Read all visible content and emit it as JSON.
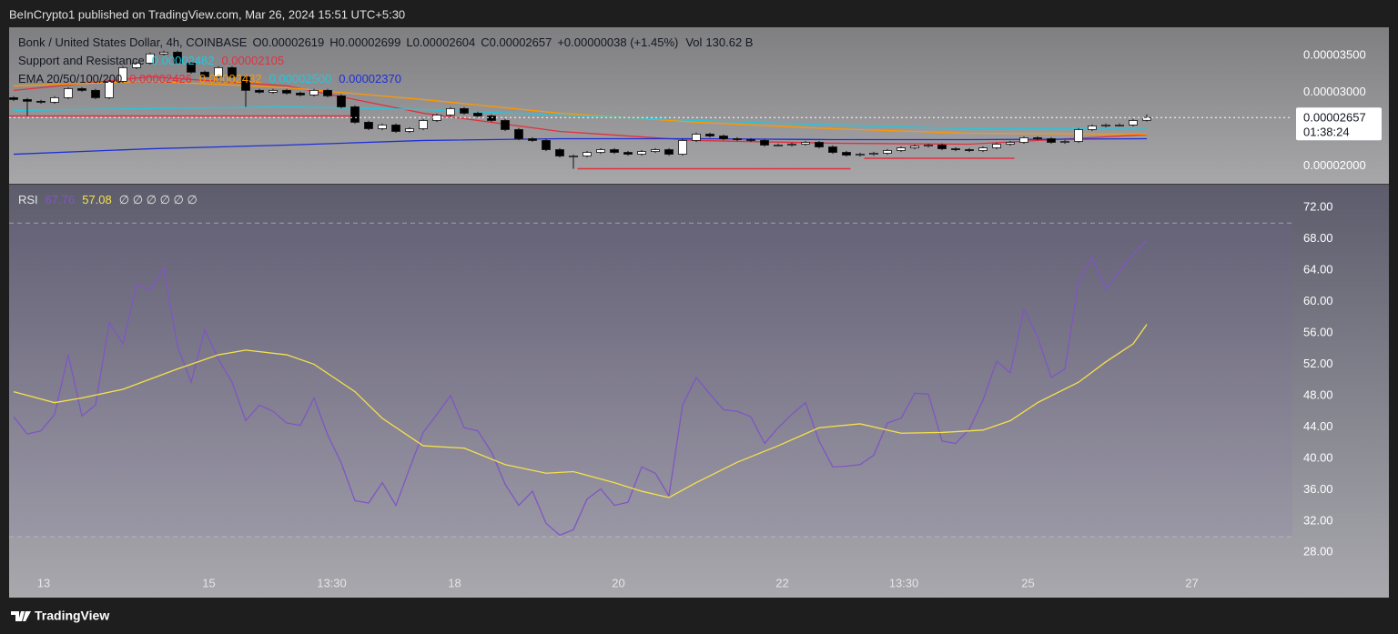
{
  "header": {
    "text": "BeInCrypto1 published on TradingView.com, Mar 26, 2024 15:51 UTC+5:30"
  },
  "footer": {
    "logo": "TradingView"
  },
  "chart_data": [
    {
      "type": "candlestick",
      "symbol": "Bonk / United States Dollar, 4h, COINBASE",
      "ohlc_labels": [
        {
          "key": "O",
          "text": "0.00002619"
        },
        {
          "key": "H",
          "text": "0.00002699"
        },
        {
          "key": "L",
          "text": "0.00002604"
        },
        {
          "key": "C",
          "text": "0.00002657"
        }
      ],
      "change": "+0.00000038 (+1.45%)",
      "volume_key": "Vol",
      "volume": "130.62 B",
      "indicators": [
        {
          "title": "Support and Resistance",
          "labels": [
            {
              "text": "0.00002482",
              "color": "#26c6da"
            },
            {
              "text": "0.00002105",
              "color": "#e0313f"
            }
          ]
        },
        {
          "title": "EMA 20/50/100/200",
          "labels": [
            {
              "text": "0.00002426",
              "color": "#e0313f"
            },
            {
              "text": "0.00002432",
              "color": "#ff9800"
            },
            {
              "text": "0.00002500",
              "color": "#26c6da"
            },
            {
              "text": "0.00002370",
              "color": "#1e2fd6"
            }
          ]
        }
      ],
      "up_color": "#ffffff",
      "down_color": "#000000",
      "x": [
        0,
        1,
        2,
        3,
        4,
        5,
        6,
        7,
        8,
        9,
        10,
        11,
        12,
        13,
        14,
        15,
        16,
        17,
        18,
        19,
        20,
        21,
        22,
        23,
        24,
        25,
        26,
        27,
        28,
        29,
        30,
        31,
        32,
        33,
        34,
        35,
        36,
        37,
        38,
        39,
        40,
        41,
        42,
        43,
        44,
        45,
        46,
        47,
        48,
        49,
        50,
        51,
        52,
        53,
        54,
        55,
        56,
        57,
        58,
        59,
        60,
        61,
        62,
        63,
        64,
        65,
        66,
        67,
        68,
        69,
        70,
        71,
        72,
        73,
        74,
        75,
        76,
        77,
        78,
        79,
        80,
        81,
        82,
        83
      ],
      "open": [
        2.926e-05,
        2.901e-05,
        2.877e-05,
        2.864e-05,
        2.926e-05,
        3.049e-05,
        3.025e-05,
        2.926e-05,
        3.148e-05,
        3.333e-05,
        3.395e-05,
        3.519e-05,
        3.543e-05,
        3.395e-05,
        3.272e-05,
        3.21e-05,
        3.333e-05,
        3.21e-05,
        3.025e-05,
        3e-05,
        3.025e-05,
        2.988e-05,
        2.963e-05,
        3.025e-05,
        2.951e-05,
        2.802e-05,
        2.593e-05,
        2.506e-05,
        2.556e-05,
        2.469e-05,
        2.506e-05,
        2.617e-05,
        2.691e-05,
        2.778e-05,
        2.716e-05,
        2.679e-05,
        2.617e-05,
        2.494e-05,
        2.37e-05,
        2.346e-05,
        2.222e-05,
        2.136e-05,
        2.136e-05,
        2.185e-05,
        2.222e-05,
        2.185e-05,
        2.16e-05,
        2.197e-05,
        2.222e-05,
        2.16e-05,
        2.346e-05,
        2.432e-05,
        2.407e-05,
        2.37e-05,
        2.358e-05,
        2.346e-05,
        2.284e-05,
        2.284e-05,
        2.296e-05,
        2.321e-05,
        2.259e-05,
        2.185e-05,
        2.148e-05,
        2.16e-05,
        2.173e-05,
        2.21e-05,
        2.247e-05,
        2.271e-05,
        2.284e-05,
        2.234e-05,
        2.222e-05,
        2.21e-05,
        2.247e-05,
        2.296e-05,
        2.321e-05,
        2.383e-05,
        2.37e-05,
        2.321e-05,
        2.333e-05,
        2.494e-05,
        2.543e-05,
        2.556e-05,
        2.556e-05,
        2.619e-05
      ],
      "high": [
        2.946e-05,
        2.921e-05,
        2.897e-05,
        2.946e-05,
        3.069e-05,
        3.069e-05,
        3.045e-05,
        3.168e-05,
        3.353e-05,
        3.415e-05,
        3.539e-05,
        3.563e-05,
        3.563e-05,
        3.415e-05,
        3.292e-05,
        3.353e-05,
        3.353e-05,
        3.23e-05,
        3.045e-05,
        3.045e-05,
        3.045e-05,
        3.008e-05,
        3.045e-05,
        3.045e-05,
        2.971e-05,
        2.822e-05,
        2.613e-05,
        2.576e-05,
        2.576e-05,
        2.526e-05,
        2.637e-05,
        2.711e-05,
        2.798e-05,
        2.798e-05,
        2.736e-05,
        2.699e-05,
        2.637e-05,
        2.514e-05,
        2.39e-05,
        2.366e-05,
        2.242e-05,
        2.156e-05,
        2.205e-05,
        2.242e-05,
        2.242e-05,
        2.205e-05,
        2.217e-05,
        2.242e-05,
        2.242e-05,
        2.366e-05,
        2.452e-05,
        2.452e-05,
        2.427e-05,
        2.39e-05,
        2.378e-05,
        2.366e-05,
        2.304e-05,
        2.316e-05,
        2.341e-05,
        2.341e-05,
        2.279e-05,
        2.205e-05,
        2.18e-05,
        2.193e-05,
        2.23e-05,
        2.267e-05,
        2.291e-05,
        2.304e-05,
        2.304e-05,
        2.254e-05,
        2.242e-05,
        2.267e-05,
        2.316e-05,
        2.341e-05,
        2.403e-05,
        2.403e-05,
        2.39e-05,
        2.353e-05,
        2.514e-05,
        2.563e-05,
        2.576e-05,
        2.576e-05,
        2.637e-05,
        2.699e-05
      ],
      "low": [
        2.881e-05,
        2.679e-05,
        2.844e-05,
        2.844e-05,
        2.906e-05,
        3.005e-05,
        2.906e-05,
        2.906e-05,
        3.128e-05,
        3.313e-05,
        3.375e-05,
        3.499e-05,
        3.375e-05,
        3.252e-05,
        3.19e-05,
        3.19e-05,
        3.19e-05,
        2.802e-05,
        2.98e-05,
        2.98e-05,
        2.968e-05,
        2.943e-05,
        2.943e-05,
        2.931e-05,
        2.782e-05,
        2.573e-05,
        2.486e-05,
        2.486e-05,
        2.449e-05,
        2.449e-05,
        2.486e-05,
        2.597e-05,
        2.671e-05,
        2.696e-05,
        2.659e-05,
        2.597e-05,
        2.474e-05,
        2.35e-05,
        2.326e-05,
        2.202e-05,
        2.116e-05,
        1.963e-05,
        2.116e-05,
        2.165e-05,
        2.165e-05,
        2.14e-05,
        2.14e-05,
        2.177e-05,
        2.14e-05,
        2.14e-05,
        2.326e-05,
        2.387e-05,
        2.35e-05,
        2.338e-05,
        2.326e-05,
        2.264e-05,
        2.264e-05,
        2.264e-05,
        2.276e-05,
        2.239e-05,
        2.165e-05,
        2.128e-05,
        2.128e-05,
        2.14e-05,
        2.153e-05,
        2.19e-05,
        2.227e-05,
        2.251e-05,
        2.214e-05,
        2.202e-05,
        2.19e-05,
        2.19e-05,
        2.227e-05,
        2.276e-05,
        2.301e-05,
        2.35e-05,
        2.301e-05,
        2.301e-05,
        2.313e-05,
        2.474e-05,
        2.523e-05,
        2.536e-05,
        2.536e-05,
        2.604e-05
      ],
      "close": [
        2.901e-05,
        2.877e-05,
        2.864e-05,
        2.926e-05,
        3.049e-05,
        3.025e-05,
        2.926e-05,
        3.148e-05,
        3.333e-05,
        3.395e-05,
        3.519e-05,
        3.543e-05,
        3.395e-05,
        3.272e-05,
        3.21e-05,
        3.333e-05,
        3.21e-05,
        3.025e-05,
        3e-05,
        3.025e-05,
        2.988e-05,
        2.963e-05,
        3.025e-05,
        2.951e-05,
        2.802e-05,
        2.593e-05,
        2.506e-05,
        2.556e-05,
        2.469e-05,
        2.506e-05,
        2.617e-05,
        2.691e-05,
        2.778e-05,
        2.716e-05,
        2.679e-05,
        2.617e-05,
        2.494e-05,
        2.37e-05,
        2.346e-05,
        2.222e-05,
        2.136e-05,
        2.136e-05,
        2.185e-05,
        2.222e-05,
        2.185e-05,
        2.16e-05,
        2.197e-05,
        2.222e-05,
        2.16e-05,
        2.346e-05,
        2.432e-05,
        2.407e-05,
        2.37e-05,
        2.358e-05,
        2.346e-05,
        2.284e-05,
        2.284e-05,
        2.296e-05,
        2.321e-05,
        2.259e-05,
        2.185e-05,
        2.148e-05,
        2.16e-05,
        2.173e-05,
        2.21e-05,
        2.247e-05,
        2.271e-05,
        2.284e-05,
        2.234e-05,
        2.222e-05,
        2.21e-05,
        2.247e-05,
        2.296e-05,
        2.321e-05,
        2.383e-05,
        2.37e-05,
        2.321e-05,
        2.333e-05,
        2.494e-05,
        2.543e-05,
        2.556e-05,
        2.556e-05,
        2.617e-05,
        2.657e-05
      ],
      "ema": [
        {
          "color": "#e0313f",
          "x": [
            0,
            10,
            20,
            30,
            40,
            50,
            60,
            70,
            83
          ],
          "values": [
            3.025e-05,
            3.21e-05,
            3.086e-05,
            2.716e-05,
            2.469e-05,
            2.346e-05,
            2.309e-05,
            2.296e-05,
            2.426e-05
          ]
        },
        {
          "color": "#ff9800",
          "x": [
            0,
            10,
            20,
            30,
            40,
            50,
            60,
            70,
            83
          ],
          "values": [
            3.086e-05,
            3.148e-05,
            3.062e-05,
            2.901e-05,
            2.716e-05,
            2.593e-05,
            2.506e-05,
            2.444e-05,
            2.432e-05
          ]
        },
        {
          "color": "#26c6da",
          "x": [
            0,
            10,
            20,
            30,
            40,
            50,
            60,
            70,
            83
          ],
          "values": [
            2.753e-05,
            2.778e-05,
            2.802e-05,
            2.765e-05,
            2.691e-05,
            2.617e-05,
            2.556e-05,
            2.506e-05,
            2.5e-05
          ]
        },
        {
          "color": "#1e2fd6",
          "x": [
            0,
            10,
            20,
            30,
            40,
            50,
            60,
            70,
            83
          ],
          "values": [
            2.16e-05,
            2.234e-05,
            2.284e-05,
            2.346e-05,
            2.37e-05,
            2.37e-05,
            2.358e-05,
            2.358e-05,
            2.37e-05
          ]
        }
      ],
      "levels": [
        {
          "value": 2.679e-05,
          "x": [
            -0.33,
            24.7
          ],
          "color": "#e0313f"
        },
        {
          "value": 1.963e-05,
          "x": [
            41.3,
            61.3
          ],
          "color": "#e0313f"
        },
        {
          "value": 2.105e-05,
          "x": [
            62.3,
            73.3
          ],
          "color": "#e0313f"
        }
      ],
      "last_price": {
        "value": 2.657e-05,
        "label": "0.00002657",
        "countdown": "01:38:24"
      },
      "ylim": [
        1.76e-05,
        3.88e-05
      ],
      "yticks": [
        {
          "value": 3.5e-05,
          "label": "0.00003500"
        },
        {
          "value": 3e-05,
          "label": "0.00003000"
        },
        {
          "value": 2e-05,
          "label": "0.00002000"
        }
      ],
      "xlim": [
        -0.333,
        93.667
      ]
    },
    {
      "type": "line",
      "title": "RSI",
      "labels": [
        {
          "text": "67.76",
          "color": "#7e57c2"
        },
        {
          "text": "57.08",
          "color": "#f5e14a"
        }
      ],
      "extra": "∅ ∅ ∅ ∅ ∅ ∅",
      "series": [
        {
          "color": "#7e57c2",
          "x": [
            0,
            1,
            2,
            3,
            4,
            5,
            6,
            7,
            8,
            9,
            10,
            11,
            12,
            13,
            14,
            15,
            16,
            17,
            18,
            19,
            20,
            21,
            22,
            23,
            24,
            25,
            26,
            27,
            28,
            29,
            30,
            31,
            32,
            33,
            34,
            35,
            36,
            37,
            38,
            39,
            40,
            41,
            42,
            43,
            44,
            45,
            46,
            47,
            48,
            49,
            50,
            51,
            52,
            53,
            54,
            55,
            56,
            57,
            58,
            59,
            60,
            61,
            62,
            63,
            64,
            65,
            66,
            67,
            68,
            69,
            70,
            71,
            72,
            73,
            74,
            75,
            76,
            77,
            78,
            79,
            80,
            81,
            82,
            83
          ],
          "values": [
            45.3,
            43.1,
            43.5,
            45.6,
            53.2,
            45.4,
            46.8,
            57.3,
            54.6,
            62.2,
            61.5,
            64.2,
            54.3,
            49.7,
            56.4,
            52.6,
            49.7,
            44.8,
            46.8,
            46.0,
            44.5,
            44.2,
            47.7,
            43.0,
            39.4,
            34.6,
            34.3,
            36.9,
            34.0,
            38.7,
            43.3,
            45.6,
            48.0,
            43.9,
            43.5,
            40.8,
            36.7,
            34.0,
            35.8,
            31.7,
            30.2,
            30.9,
            34.8,
            36.1,
            34.0,
            34.4,
            38.9,
            38.1,
            35.2,
            46.8,
            50.3,
            48.2,
            46.2,
            46.0,
            45.3,
            41.9,
            43.9,
            45.6,
            47.1,
            42.2,
            38.9,
            39.0,
            39.2,
            40.4,
            44.5,
            45.1,
            48.3,
            48.2,
            42.2,
            41.9,
            43.7,
            47.4,
            52.4,
            50.9,
            59.0,
            55.5,
            50.3,
            51.4,
            62.5,
            65.6,
            61.5,
            63.9,
            66.0,
            67.76
          ]
        },
        {
          "color": "#f5e14a",
          "x": [
            0,
            3,
            5,
            8,
            12,
            15,
            17,
            20,
            22,
            25,
            27,
            30,
            33,
            36,
            39,
            41,
            44,
            46,
            48,
            50,
            53,
            56,
            59,
            62,
            65,
            68,
            71,
            73,
            75,
            78,
            80,
            82,
            83
          ],
          "values": [
            48.5,
            47.1,
            47.7,
            48.8,
            51.4,
            53.2,
            53.8,
            53.2,
            52.0,
            48.5,
            45.1,
            41.6,
            41.3,
            39.2,
            38.1,
            38.3,
            36.9,
            35.8,
            35.0,
            36.9,
            39.5,
            41.6,
            43.9,
            44.4,
            43.2,
            43.3,
            43.6,
            44.8,
            47.1,
            49.7,
            52.3,
            54.6,
            57.08
          ]
        }
      ],
      "bands": [
        70,
        30
      ],
      "ylim": [
        25.6,
        74.9
      ],
      "yticks": [
        {
          "value": 72,
          "label": "72.00"
        },
        {
          "value": 68,
          "label": "68.00"
        },
        {
          "value": 64,
          "label": "64.00"
        },
        {
          "value": 60,
          "label": "60.00"
        },
        {
          "value": 56,
          "label": "56.00"
        },
        {
          "value": 52,
          "label": "52.00"
        },
        {
          "value": 48,
          "label": "48.00"
        },
        {
          "value": 44,
          "label": "44.00"
        },
        {
          "value": 40,
          "label": "40.00"
        },
        {
          "value": 36,
          "label": "36.00"
        },
        {
          "value": 32,
          "label": "32.00"
        },
        {
          "value": 28,
          "label": "28.00"
        }
      ],
      "xlim": [
        -0.333,
        93.667
      ],
      "xticks": [
        {
          "value": 2.2,
          "label": "13"
        },
        {
          "value": 14.3,
          "label": "15"
        },
        {
          "value": 23.3,
          "label": "13:30"
        },
        {
          "value": 32.3,
          "label": "18"
        },
        {
          "value": 44.3,
          "label": "20"
        },
        {
          "value": 56.3,
          "label": "22"
        },
        {
          "value": 65.2,
          "label": "13:30"
        },
        {
          "value": 74.3,
          "label": "25"
        },
        {
          "value": 86.3,
          "label": "27"
        }
      ]
    }
  ]
}
